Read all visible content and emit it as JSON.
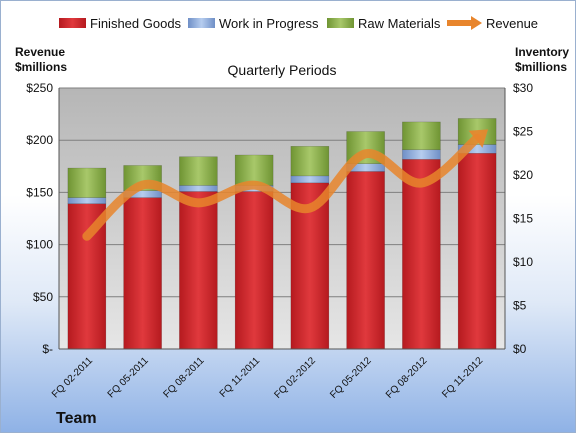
{
  "chart_data": {
    "type": "bar",
    "stacked": true,
    "title": "Quarterly Periods",
    "categories": [
      "FQ 02-2011",
      "FQ 05-2011",
      "FQ 08-2011",
      "FQ 11-2011",
      "FQ 02-2012",
      "FQ 05-2012",
      "FQ 08-2012",
      "FQ 11-2012"
    ],
    "series": [
      {
        "name": "Finished Goods",
        "axis": "right",
        "color": "#d0262b",
        "values": [
          16.7,
          17.4,
          18.1,
          18.1,
          19.1,
          20.4,
          21.8,
          22.5
        ]
      },
      {
        "name": "Work in Progress",
        "axis": "right",
        "color": "#8eaee0",
        "values": [
          0.7,
          0.8,
          0.7,
          0.7,
          0.8,
          0.9,
          1.1,
          1.0
        ]
      },
      {
        "name": "Raw Materials",
        "axis": "right",
        "color": "#90b648",
        "values": [
          3.4,
          2.9,
          3.3,
          3.5,
          3.4,
          3.7,
          3.2,
          3.0
        ]
      },
      {
        "name": "Revenue",
        "axis": "left",
        "type": "line",
        "color": "#e8852c",
        "values": [
          108,
          157,
          140,
          157,
          135,
          187,
          159,
          202
        ]
      }
    ],
    "left_axis": {
      "label_line1": "Revenue",
      "label_line2": "$millions",
      "ylim": [
        0,
        250
      ],
      "ticks": [
        "$-",
        "$50",
        "$100",
        "$150",
        "$200",
        "$250"
      ]
    },
    "right_axis": {
      "label_line1": "Inventory",
      "label_line2": "$millions",
      "ylim": [
        0,
        30
      ],
      "ticks": [
        "$0",
        "$5",
        "$10",
        "$15",
        "$20",
        "$25",
        "$30"
      ]
    },
    "grid": true,
    "legend_position": "top"
  },
  "footer": {
    "team": "Team"
  }
}
